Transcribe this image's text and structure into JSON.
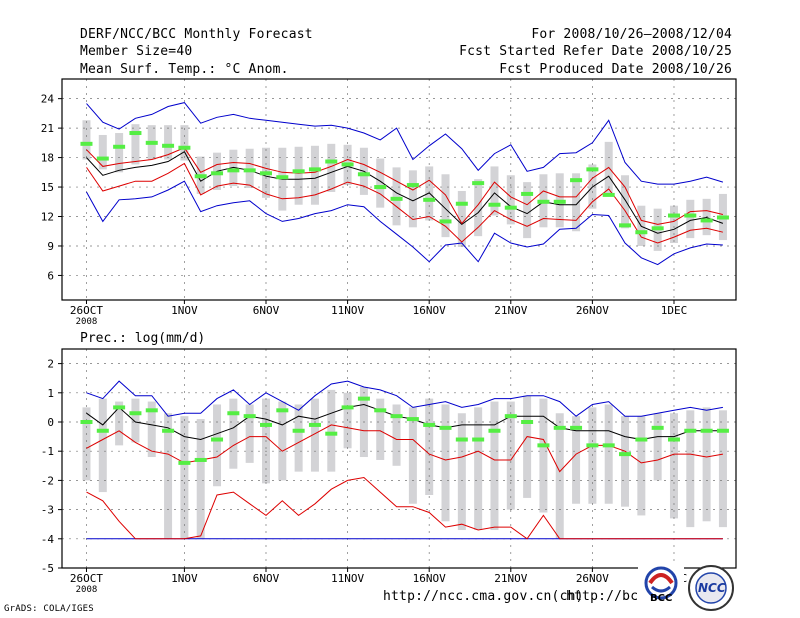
{
  "header": {
    "title": "DERF/NCC/BCC Monthly Forecast",
    "member_size": "Member Size=40",
    "variable": "Mean Surf. Temp.: °C Anom.",
    "period": "For 2008/10/26—2008/12/04",
    "started": "Fcst Started Refer Date 2008/10/25",
    "produced": "Fcst Produced Date 2008/10/26"
  },
  "footer": {
    "credit": "GrADS: COLA/IGES",
    "url_ch": "http://ncc.cma.gov.cn(ch)",
    "url_en": "http://bcc.c",
    "logo_bcc": "BCC",
    "logo_ncc": "NCC"
  },
  "x_ticks": [
    "26OCT",
    "1NOV",
    "6NOV",
    "11NOV",
    "16NOV",
    "21NOV",
    "26NOV",
    "1DEC"
  ],
  "x_tick_days": [
    0,
    6,
    11,
    16,
    21,
    26,
    31,
    36
  ],
  "x_year": "2008",
  "colors": {
    "mean": "#000000",
    "spread": "#dd0000",
    "extreme": "#0000cc",
    "box": "#d3d3d6",
    "median": "#55ee44"
  },
  "chart_data": [
    {
      "type": "line",
      "title": "Mean Surf. Temp.: °C Anom.",
      "ylim": [
        3.5,
        26
      ],
      "yticks": [
        6,
        9,
        12,
        15,
        18,
        21,
        24
      ],
      "x_days": [
        0,
        1,
        2,
        3,
        4,
        5,
        6,
        7,
        8,
        9,
        10,
        11,
        12,
        13,
        14,
        15,
        16,
        17,
        18,
        19,
        20,
        21,
        22,
        23,
        24,
        25,
        26,
        27,
        28,
        29,
        30,
        31,
        32,
        33,
        34,
        35,
        36,
        37,
        38,
        39
      ],
      "series": [
        {
          "name": "max",
          "values": [
            23.5,
            21.6,
            20.9,
            22,
            22.4,
            23.2,
            23.6,
            21.5,
            22.1,
            22.4,
            22,
            21.8,
            21.6,
            21.4,
            21.2,
            21.3,
            21,
            20.5,
            19.8,
            21,
            17.8,
            19.2,
            20.4,
            18.9,
            16.7,
            18.4,
            19.3,
            16.6,
            17,
            18.4,
            18.5,
            19.5,
            21.8,
            17.5,
            15.6,
            15.3,
            15.3,
            15.6,
            16,
            15.5
          ]
        },
        {
          "name": "mean_plus_std",
          "values": [
            18.8,
            17.1,
            17.4,
            17.6,
            17.8,
            18.3,
            19,
            16.5,
            17.3,
            17.5,
            17.4,
            16.9,
            16.5,
            16.4,
            16.5,
            17.1,
            17.8,
            17.3,
            16.5,
            15.6,
            14.7,
            15.7,
            14.2,
            11.3,
            13.2,
            15.5,
            14,
            13.2,
            14.6,
            14,
            14,
            15.9,
            17,
            15,
            11.6,
            11.2,
            11.5,
            12.5,
            12.6,
            12.2
          ]
        },
        {
          "name": "mean",
          "values": [
            18,
            16.2,
            16.7,
            17,
            17.2,
            17.6,
            18.6,
            15.6,
            16.6,
            17,
            16.7,
            16.1,
            15.8,
            15.8,
            15.9,
            16.5,
            17.1,
            16.6,
            15.6,
            14.4,
            13.6,
            14.4,
            12.8,
            11.2,
            12.4,
            14.4,
            13,
            12.3,
            13.5,
            13.2,
            13.2,
            15,
            16.1,
            13.7,
            11,
            10.3,
            10.7,
            11.6,
            11.9,
            11.3
          ]
        },
        {
          "name": "mean_minus_std",
          "values": [
            17,
            14.6,
            15.1,
            15.6,
            15.6,
            16.4,
            17.4,
            14.2,
            15.1,
            15.4,
            15.2,
            14.3,
            13.8,
            13.9,
            14.2,
            14.8,
            15.5,
            15.1,
            14.3,
            13,
            11.7,
            12,
            11,
            9.4,
            10.9,
            12.6,
            11.7,
            11,
            11.8,
            11.7,
            11.6,
            13.5,
            14.8,
            12.6,
            9.9,
            9.3,
            9.9,
            10.6,
            10.8,
            10.4
          ]
        },
        {
          "name": "min",
          "values": [
            14.5,
            11.5,
            13.7,
            13.8,
            14,
            14.7,
            15.6,
            12.5,
            13.1,
            13.4,
            13.6,
            12.3,
            11.5,
            11.8,
            12.3,
            12.6,
            13.2,
            13,
            11.5,
            10.2,
            8.9,
            7.4,
            9.1,
            9.3,
            7.4,
            10.3,
            9.3,
            8.9,
            9.2,
            10.7,
            10.8,
            12.2,
            12.1,
            9.3,
            7.8,
            7.1,
            8.2,
            8.8,
            9.2,
            9.1
          ]
        },
        {
          "name": "median",
          "values": [
            19.4,
            17.9,
            19.1,
            20.5,
            19.5,
            19.2,
            19,
            16.1,
            16.4,
            16.7,
            16.7,
            16.4,
            16,
            16.6,
            16.8,
            17.6,
            17.3,
            16.3,
            15,
            13.8,
            15.2,
            13.7,
            11.5,
            13.3,
            15.4,
            13.2,
            12.9,
            14.3,
            13.5,
            13.5,
            15.7,
            16.8,
            14.2,
            11.1,
            10.4,
            10.8,
            12.1,
            12.1,
            11.6,
            11.9
          ]
        },
        {
          "name": "q25",
          "values": [
            17.8,
            16.8,
            16.5,
            17.3,
            17.8,
            17.8,
            17.7,
            14.3,
            14.7,
            15.1,
            14.9,
            13.9,
            12.6,
            13.2,
            13.2,
            14.5,
            15.2,
            14.2,
            12.9,
            11.1,
            10.9,
            11.6,
            9.9,
            8.9,
            10,
            12.1,
            11.2,
            9.8,
            10.9,
            10.9,
            10.5,
            12.8,
            14.2,
            10.8,
            9,
            8.5,
            9.3,
            9.8,
            10.1,
            9.6
          ]
        },
        {
          "name": "q75",
          "values": [
            21.8,
            20.3,
            20.5,
            21.4,
            21.3,
            21.3,
            21.3,
            18.1,
            18.5,
            18.8,
            18.9,
            19,
            19,
            19.1,
            19.2,
            19.4,
            19.3,
            19,
            17.9,
            17,
            16.7,
            17.1,
            16.3,
            14.6,
            15.8,
            17.1,
            16.2,
            15.5,
            16.3,
            16.4,
            16.4,
            17.3,
            19.6,
            16.2,
            13.1,
            12.8,
            13.1,
            13.7,
            13.8,
            14.3
          ]
        }
      ]
    },
    {
      "type": "line",
      "title": "Prec.: log(mm/d)",
      "ylim": [
        -5,
        2.5
      ],
      "yticks": [
        -5,
        -4,
        -3,
        -2,
        -1,
        0,
        1,
        2
      ],
      "x_days": [
        0,
        1,
        2,
        3,
        4,
        5,
        6,
        7,
        8,
        9,
        10,
        11,
        12,
        13,
        14,
        15,
        16,
        17,
        18,
        19,
        20,
        21,
        22,
        23,
        24,
        25,
        26,
        27,
        28,
        29,
        30,
        31,
        32,
        33,
        34,
        35,
        36,
        37,
        38,
        39
      ],
      "series": [
        {
          "name": "max",
          "values": [
            1,
            0.8,
            1.4,
            0.9,
            0.9,
            0.2,
            0.3,
            0.3,
            0.8,
            1.1,
            0.6,
            1,
            0.7,
            0.4,
            0.9,
            1.3,
            1.4,
            1.2,
            1.1,
            0.9,
            0.5,
            0.6,
            0.7,
            0.5,
            0.6,
            0.8,
            0.8,
            0.9,
            0.9,
            0.7,
            0.2,
            0.6,
            0.7,
            0.2,
            0.2,
            0.3,
            0.4,
            0.5,
            0.4,
            0.5
          ]
        },
        {
          "name": "mean",
          "values": [
            0.3,
            -0.1,
            0.5,
            0,
            -0.1,
            -0.2,
            -0.5,
            -0.6,
            -0.4,
            -0.2,
            0.2,
            0.1,
            -0.1,
            0.2,
            0.1,
            0.3,
            0.5,
            0.6,
            0.4,
            0.2,
            0.1,
            -0.1,
            -0.2,
            -0.1,
            -0.1,
            -0.1,
            0.2,
            0.2,
            0.2,
            -0.2,
            -0.3,
            -0.3,
            -0.3,
            -0.5,
            -0.6,
            -0.5,
            -0.5,
            -0.3,
            -0.3,
            -0.3
          ]
        },
        {
          "name": "mean_minus_std",
          "values": [
            -0.9,
            -0.6,
            -0.3,
            -0.7,
            -1,
            -1.1,
            -1.4,
            -1.3,
            -1.2,
            -0.8,
            -0.5,
            -0.5,
            -1,
            -0.7,
            -0.4,
            -0.1,
            -0.2,
            -0.3,
            -0.3,
            -0.6,
            -0.6,
            -1.1,
            -1.3,
            -1.2,
            -1,
            -1.3,
            -1.3,
            -0.5,
            -0.6,
            -1.7,
            -1.1,
            -0.8,
            -0.8,
            -1,
            -1.4,
            -1.3,
            -1.1,
            -1.1,
            -1.2,
            -1.1
          ]
        },
        {
          "name": "lower_limit",
          "values": [
            -2.4,
            -2.7,
            -3.4,
            -4,
            -4,
            -4,
            -4,
            -3.9,
            -2.5,
            -2.4,
            -2.8,
            -3.2,
            -2.7,
            -3.2,
            -2.8,
            -2.3,
            -2,
            -1.9,
            -2.4,
            -2.9,
            -2.9,
            -3.1,
            -3.6,
            -3.5,
            -3.7,
            -3.6,
            -3.6,
            -4,
            -3.2,
            -4,
            -4,
            -4,
            -4,
            -4,
            -4,
            -4,
            -4,
            -4,
            -4,
            -4
          ]
        },
        {
          "name": "min",
          "values": [
            -4,
            -4,
            -4,
            -4,
            -4,
            -4,
            -4,
            -4,
            -4,
            -4,
            -4,
            -4,
            -4,
            -4,
            -4,
            -4,
            -4,
            -4,
            -4,
            -4,
            -4,
            -4,
            -4,
            -4,
            -4,
            -4,
            -4,
            -4,
            -4,
            -4,
            -4,
            -4,
            -4,
            -4,
            -4,
            -4,
            -4,
            -4,
            -4,
            -4
          ]
        },
        {
          "name": "median",
          "values": [
            0,
            -0.3,
            0.5,
            0.3,
            0.4,
            -0.3,
            -1.4,
            -1.3,
            -0.6,
            0.3,
            0.2,
            -0.1,
            0.4,
            -0.3,
            -0.1,
            -0.4,
            0.5,
            0.8,
            0.4,
            0.2,
            0.1,
            -0.1,
            -0.2,
            -0.6,
            -0.6,
            -0.3,
            0.2,
            0,
            -0.8,
            -0.2,
            -0.2,
            -0.8,
            -0.8,
            -1.1,
            -0.6,
            -0.2,
            -0.6,
            -0.3,
            -0.3,
            -0.3
          ]
        },
        {
          "name": "q25",
          "values": [
            -2,
            -2.4,
            -0.8,
            -0.7,
            -1.2,
            -4,
            -4,
            -4,
            -2.2,
            -1.6,
            -1.4,
            -2.1,
            -2,
            -1.7,
            -1.7,
            -1.7,
            -0.9,
            -1.2,
            -1.3,
            -1.5,
            -2.8,
            -2.5,
            -3.4,
            -3.7,
            -3.7,
            -3.7,
            -3,
            -2.6,
            -3.1,
            -4,
            -2.8,
            -2.8,
            -2.8,
            -2.9,
            -3.2,
            -2,
            -3.3,
            -3.6,
            -3.4,
            -3.6
          ]
        },
        {
          "name": "q75",
          "values": [
            0.5,
            0.8,
            0.7,
            0.8,
            0.7,
            0.3,
            0.2,
            0.1,
            0.6,
            0.8,
            0.6,
            0.8,
            0.7,
            0.6,
            0.8,
            1.1,
            1,
            1.2,
            0.8,
            0.6,
            0.5,
            0.8,
            0.6,
            0.3,
            0.5,
            0.7,
            0.7,
            0.9,
            0.8,
            0.3,
            0.2,
            0.5,
            0.6,
            0.2,
            0.2,
            0.3,
            0.3,
            0.4,
            0.5,
            0.4
          ]
        }
      ]
    }
  ]
}
